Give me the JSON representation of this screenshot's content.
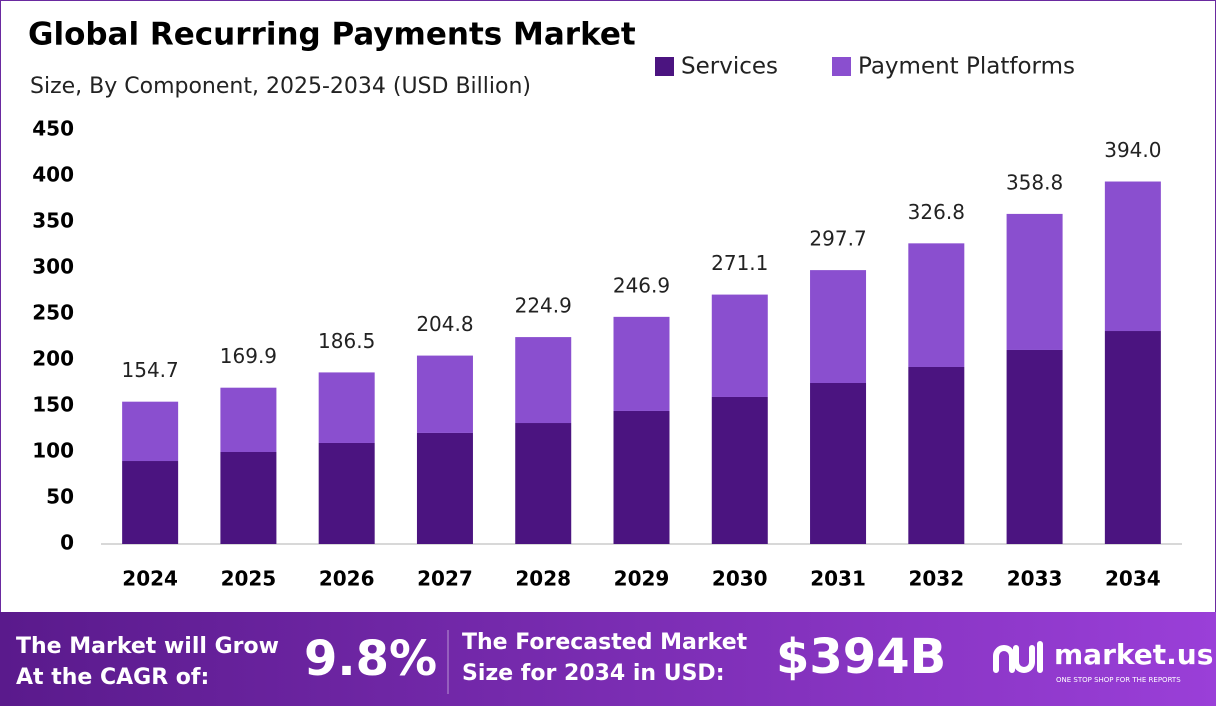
{
  "chart_data": {
    "type": "stacked_bar",
    "title": "Global Recurring Payments Market",
    "subtitle": "Size, By Component, 2025-2034 (USD Billion)",
    "categories": [
      "2024",
      "2025",
      "2026",
      "2027",
      "2028",
      "2029",
      "2030",
      "2031",
      "2032",
      "2033",
      "2034"
    ],
    "series": [
      {
        "name": "Services",
        "color": "#4b1480",
        "values": [
          90.2,
          100.0,
          109.8,
          120.7,
          131.5,
          144.6,
          159.8,
          175.0,
          192.4,
          210.9,
          231.5
        ]
      },
      {
        "name": "Payment Platforms",
        "color": "#8a4fcf",
        "values": [
          64.5,
          69.9,
          76.7,
          84.1,
          93.4,
          102.3,
          111.3,
          122.7,
          134.4,
          147.9,
          162.5
        ]
      }
    ],
    "totals": [
      "154.7",
      "169.9",
      "186.5",
      "204.8",
      "224.9",
      "246.9",
      "271.1",
      "297.7",
      "326.8",
      "358.8",
      "394.0"
    ],
    "ylim": [
      0,
      450
    ],
    "yticks": [
      0,
      50,
      100,
      150,
      200,
      250,
      300,
      350,
      400,
      450
    ],
    "grid": false,
    "legend": "top-right"
  },
  "footer": {
    "cagr_text": [
      "The Market will Grow",
      "At the CAGR of:"
    ],
    "cagr_value": "9.8%",
    "forecast_text": [
      "The Forecasted Market",
      "Size for 2034 in USD:"
    ],
    "forecast_value": "$394B",
    "logo": "market.us",
    "logo_tagline": "ONE STOP SHOP FOR THE REPORTS"
  }
}
